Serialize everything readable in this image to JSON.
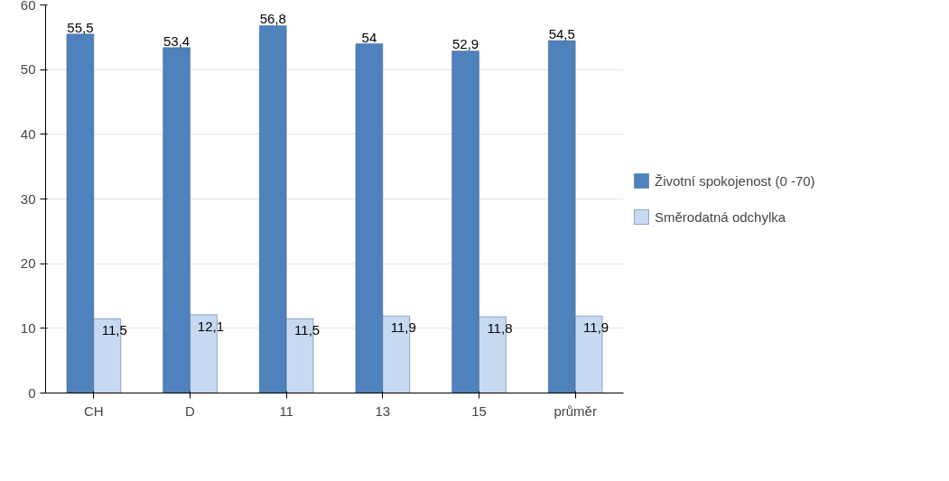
{
  "chart_data": {
    "type": "bar",
    "categories": [
      "CH",
      "D",
      "11",
      "13",
      "15",
      "průměr"
    ],
    "series": [
      {
        "name": "Životní spokojenost (0 -70)",
        "color": "#4f81bd",
        "values": [
          55.5,
          53.4,
          56.8,
          54,
          52.9,
          54.5
        ],
        "value_labels": [
          "55,5",
          "53,4",
          "56,8",
          "54",
          "52,9",
          "54,5"
        ]
      },
      {
        "name": "Směrodatná odchylka",
        "color": "#c6d9f1",
        "values": [
          11.5,
          12.1,
          11.5,
          11.9,
          11.8,
          11.9
        ],
        "value_labels": [
          "11,5",
          "12,1",
          "11,5",
          "11,9",
          "11,8",
          "11,9"
        ]
      }
    ],
    "ylim": [
      0,
      60
    ],
    "yticks": [
      0,
      10,
      20,
      30,
      40,
      50,
      60
    ],
    "grid": "y",
    "legend": "right"
  }
}
